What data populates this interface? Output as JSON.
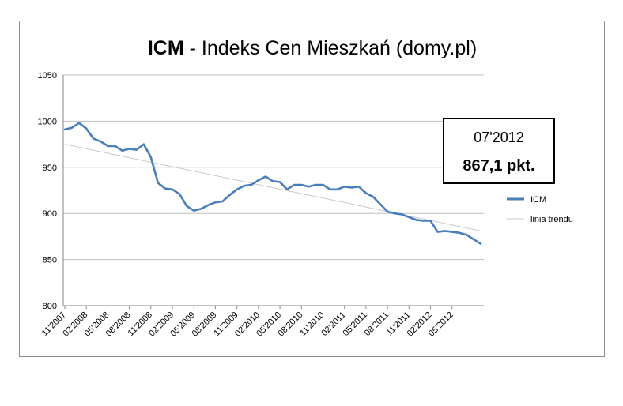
{
  "chart_data": {
    "type": "line",
    "title_bold": "ICM",
    "title_rest": " - Indeks Cen Mieszkań (domy.pl)",
    "xlabel": "",
    "ylabel": "",
    "ylim": [
      800,
      1050
    ],
    "yticks": [
      800,
      850,
      900,
      950,
      1000,
      1050
    ],
    "ytick_labels": [
      "800",
      "850",
      "900",
      "950",
      "1000",
      "1050"
    ],
    "x_tick_labels": [
      "11'2007",
      "02'2008",
      "05'2008",
      "08'2008",
      "11'2008",
      "02'2009",
      "05'2009",
      "08'2009",
      "11'2009",
      "02'2010",
      "05'2010",
      "08'2010",
      "11'2010",
      "02'2011",
      "05'2011",
      "08'2011",
      "11'2011",
      "02'2012",
      "05'2012"
    ],
    "grid": "horizontal",
    "legend_position": "right",
    "series": [
      {
        "name": "ICM",
        "color": "#4a7ebb",
        "values": [
          991,
          993,
          998,
          992,
          981,
          978,
          973,
          973,
          968,
          970,
          969,
          975,
          961,
          933,
          927,
          926,
          921,
          908,
          903,
          905,
          909,
          912,
          913,
          920,
          926,
          930,
          931,
          936,
          940,
          935,
          934,
          926,
          931,
          931,
          929,
          931,
          931,
          926,
          926,
          929,
          928,
          929,
          922,
          918,
          910,
          902,
          900,
          899,
          896,
          893,
          892,
          892,
          880,
          881,
          880,
          879,
          877,
          872,
          867
        ]
      },
      {
        "name": "linia trendu",
        "color": "#c8c8c8",
        "values": [
          975,
          881
        ]
      }
    ],
    "annotation": {
      "month": "07'2012",
      "value": "867,1 pkt."
    }
  }
}
